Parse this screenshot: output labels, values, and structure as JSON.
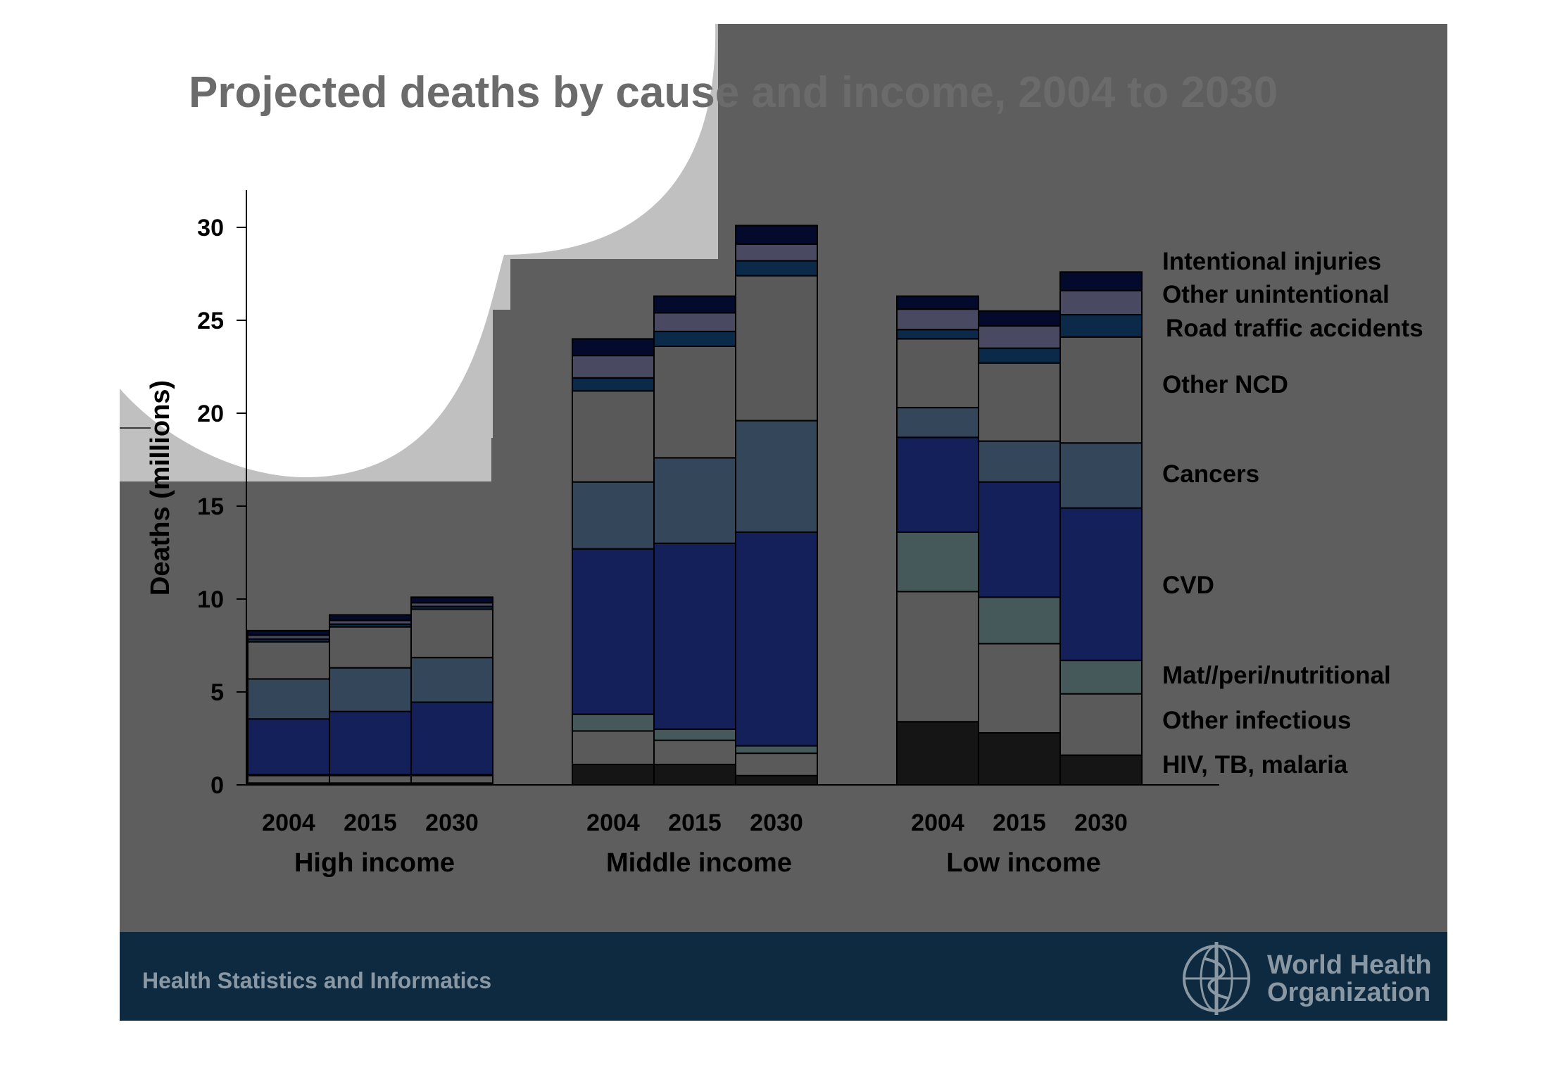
{
  "slide": {
    "title": "Projected deaths by cause and income, 2004 to 2030",
    "footer_left": "Health Statistics and Informatics",
    "logo_line1": "World Health",
    "logo_line2": "Organization",
    "colors": {
      "slide_bg": "#5e5e5e",
      "title": "#6b6b6b",
      "footer_bar": "#0d2a40",
      "footer_text": "#8a98a4",
      "logo": "#8a98a4",
      "white_shape": "#ffffff",
      "silver_shape": "#c0c0c0",
      "axis": "#000000",
      "text": "#000000"
    }
  },
  "chart_data": {
    "type": "bar",
    "stacked": true,
    "ylabel": "Deaths (millions)",
    "ylim": [
      0,
      32
    ],
    "yticks": [
      0,
      5,
      10,
      15,
      20,
      25,
      30
    ],
    "groups": [
      {
        "label": "High income",
        "categories": [
          "2004",
          "2015",
          "2030"
        ]
      },
      {
        "label": "Middle income",
        "categories": [
          "2004",
          "2015",
          "2030"
        ]
      },
      {
        "label": "Low income",
        "categories": [
          "2004",
          "2015",
          "2030"
        ]
      }
    ],
    "series": [
      {
        "name": "HIV, TB, malaria",
        "color": "#151515",
        "values": [
          0.1,
          0.1,
          0.1,
          1.1,
          1.1,
          0.5,
          3.4,
          2.8,
          1.6
        ]
      },
      {
        "name": "Other infectious",
        "color": "#5a5a5a",
        "values": [
          0.4,
          0.4,
          0.4,
          1.8,
          1.3,
          1.2,
          7.0,
          4.8,
          3.3
        ]
      },
      {
        "name": "Mat//peri/nutritional",
        "color": "#45585a",
        "values": [
          0.05,
          0.05,
          0.05,
          0.9,
          0.6,
          0.4,
          3.2,
          2.5,
          1.8
        ]
      },
      {
        "name": "CVD",
        "color": "#14205a",
        "values": [
          3.0,
          3.4,
          3.9,
          8.9,
          10.0,
          11.5,
          5.1,
          6.2,
          8.2
        ]
      },
      {
        "name": "Cancers",
        "color": "#33465a",
        "values": [
          2.15,
          2.35,
          2.4,
          3.6,
          4.6,
          6.0,
          1.6,
          2.2,
          3.5
        ]
      },
      {
        "name": "Other NCD",
        "color": "#595959",
        "values": [
          2.0,
          2.2,
          2.6,
          4.9,
          6.0,
          7.8,
          3.7,
          4.2,
          5.7
        ]
      },
      {
        "name": "Road traffic accidents",
        "color": "#0b2a4a",
        "values": [
          0.15,
          0.15,
          0.15,
          0.7,
          0.8,
          0.8,
          0.5,
          0.8,
          1.2
        ]
      },
      {
        "name": "Other unintentional",
        "color": "#494a62",
        "values": [
          0.2,
          0.2,
          0.2,
          1.2,
          1.0,
          0.9,
          1.1,
          1.2,
          1.3
        ]
      },
      {
        "name": "Intentional injuries",
        "color": "#040a2c",
        "values": [
          0.25,
          0.3,
          0.3,
          0.9,
          0.9,
          1.0,
          0.7,
          0.8,
          1.0
        ]
      }
    ]
  }
}
